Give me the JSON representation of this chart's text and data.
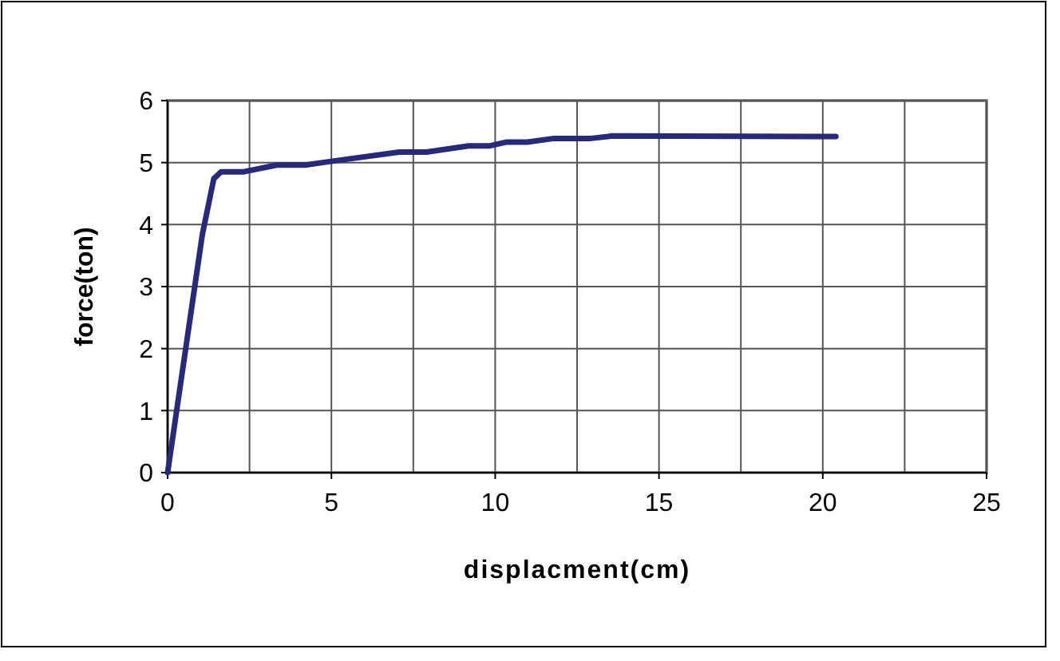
{
  "chart_data": {
    "type": "line",
    "xlabel": "displacment(cm)",
    "ylabel": "force(ton)",
    "x": [
      0,
      1.06,
      1.41,
      1.63,
      2.3,
      3.33,
      4.2,
      4.99,
      7.07,
      7.9,
      9.19,
      9.84,
      10.33,
      10.98,
      11.79,
      12.92,
      13.58,
      20.4
    ],
    "series": [
      {
        "color": "#262a78",
        "values": [
          0,
          3.84,
          4.74,
          4.85,
          4.85,
          4.96,
          4.96,
          5.02,
          5.17,
          5.17,
          5.27,
          5.27,
          5.33,
          5.33,
          5.39,
          5.39,
          5.43,
          5.42
        ]
      }
    ],
    "xlim": [
      0,
      25
    ],
    "xticks": [
      0,
      {
        "value": 2.5,
        "label": null
      },
      5,
      {
        "value": 7.5,
        "label": null
      },
      10,
      {
        "value": 12.5,
        "label": null
      },
      15,
      {
        "value": 17.5,
        "label": null
      },
      20,
      {
        "value": 22.5,
        "label": null
      },
      25
    ],
    "ylim": [
      0,
      6
    ],
    "yticks": [
      0,
      1,
      2,
      3,
      4,
      5,
      6
    ],
    "grid": true,
    "marker": "none",
    "line_style": "solid"
  }
}
